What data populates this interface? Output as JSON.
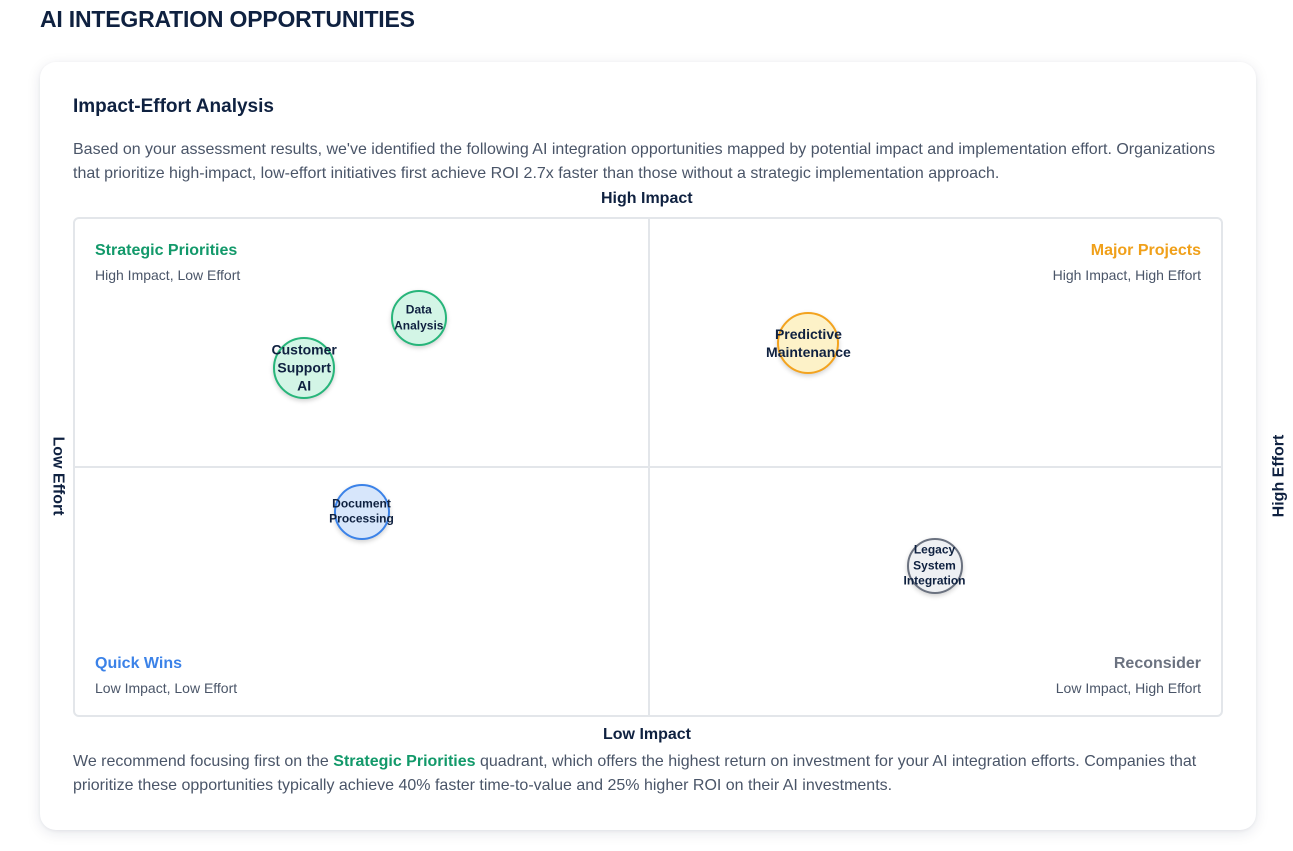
{
  "page": {
    "title": "AI INTEGRATION OPPORTUNITIES"
  },
  "card": {
    "title": "Impact-Effort Analysis",
    "intro": "Based on your assessment results, we've identified the following AI integration opportunities mapped by potential impact and implementation effort. Organizations that prioritize high-impact, low-effort initiatives first achieve ROI 2.7x faster than those without a strategic implementation approach."
  },
  "axes": {
    "top": "High Impact",
    "bottom": "Low Impact",
    "left": "Low Effort",
    "right": "High Effort"
  },
  "quadrants": {
    "top_left": {
      "title": "Strategic Priorities",
      "subtitle": "High Impact, Low Effort",
      "color": "#12996a"
    },
    "top_right": {
      "title": "Major Projects",
      "subtitle": "High Impact, High Effort",
      "color": "#f0a01a"
    },
    "bottom_left": {
      "title": "Quick Wins",
      "subtitle": "Low Impact, Low Effort",
      "color": "#3b82e8"
    },
    "bottom_right": {
      "title": "Reconsider",
      "subtitle": "Low Impact, High Effort",
      "color": "#6b7280"
    }
  },
  "opportunities": [
    {
      "label": "Data\nAnalysis",
      "quadrant": "top_left",
      "effort": 0.3,
      "impact": 0.8,
      "style": "green"
    },
    {
      "label": "Customer\nSupport\nAI",
      "quadrant": "top_left",
      "effort": 0.2,
      "impact": 0.7,
      "style": "green"
    },
    {
      "label": "Predictive\nMaintenance",
      "quadrant": "top_right",
      "effort": 0.64,
      "impact": 0.75,
      "style": "amber"
    },
    {
      "label": "Document\nProcessing",
      "quadrant": "bottom_left",
      "effort": 0.25,
      "impact": 0.41,
      "style": "blue"
    },
    {
      "label": "Legacy\nSystem\nIntegration",
      "quadrant": "bottom_right",
      "effort": 0.75,
      "impact": 0.3,
      "style": "gray"
    }
  ],
  "footer": {
    "before": "We recommend focusing first on the ",
    "highlight": "Strategic Priorities",
    "after": " quadrant, which offers the highest return on investment for your AI integration efforts. Companies that prioritize these opportunities typically achieve 40% faster time-to-value and 25% higher ROI on their AI investments."
  }
}
